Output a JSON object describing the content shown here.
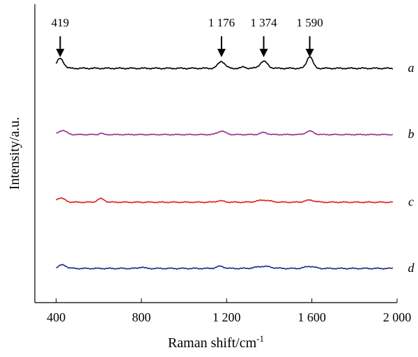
{
  "chart_data": {
    "type": "line",
    "xlabel": "Raman shift/cm",
    "xlabel_superscript": "-1",
    "ylabel": "Intensity/a.u.",
    "xlim": [
      300,
      2000
    ],
    "xticks": [
      400,
      800,
      1200,
      1600,
      2000
    ],
    "xtick_labels": [
      "400",
      "800",
      "1 200",
      "1 600",
      "2 000"
    ],
    "y_axis_ticks": false,
    "x_axis_only_bottom": true,
    "series": [
      {
        "name": "a",
        "color": "#000000",
        "x_range": [
          400,
          1980
        ],
        "peaks": [
          {
            "x": 419,
            "h": 14,
            "w": 16
          },
          {
            "x": 1176,
            "h": 10,
            "w": 16
          },
          {
            "x": 1374,
            "h": 10,
            "w": 18
          },
          {
            "x": 1590,
            "h": 17,
            "w": 14
          },
          {
            "x": 1280,
            "h": 2,
            "w": 10
          }
        ],
        "noise": 1.0
      },
      {
        "name": "b",
        "color": "#9b2d8e",
        "x_range": [
          400,
          1980
        ],
        "peaks": [
          {
            "x": 430,
            "h": 6,
            "w": 18
          },
          {
            "x": 1176,
            "h": 5,
            "w": 18
          },
          {
            "x": 1374,
            "h": 3,
            "w": 16
          },
          {
            "x": 1590,
            "h": 5,
            "w": 18
          },
          {
            "x": 610,
            "h": 2,
            "w": 8
          }
        ],
        "noise": 0.7
      },
      {
        "name": "c",
        "color": "#e02020",
        "x_range": [
          400,
          1980
        ],
        "peaks": [
          {
            "x": 420,
            "h": 6,
            "w": 20
          },
          {
            "x": 610,
            "h": 5,
            "w": 16
          },
          {
            "x": 1170,
            "h": 2,
            "w": 18
          },
          {
            "x": 1374,
            "h": 3,
            "w": 30
          },
          {
            "x": 1590,
            "h": 3,
            "w": 22
          }
        ],
        "noise": 0.8
      },
      {
        "name": "d",
        "color": "#1f2d8c",
        "x_range": [
          400,
          1980
        ],
        "peaks": [
          {
            "x": 430,
            "h": 5,
            "w": 18
          },
          {
            "x": 800,
            "h": 2,
            "w": 12
          },
          {
            "x": 1170,
            "h": 3,
            "w": 18
          },
          {
            "x": 1374,
            "h": 3,
            "w": 34
          },
          {
            "x": 1590,
            "h": 3,
            "w": 22
          }
        ],
        "noise": 0.9
      }
    ],
    "annotations": [
      {
        "text": "419",
        "x": 419
      },
      {
        "text": "1 176",
        "x": 1176
      },
      {
        "text": "1 374",
        "x": 1374
      },
      {
        "text": "1 590",
        "x": 1590
      }
    ]
  }
}
